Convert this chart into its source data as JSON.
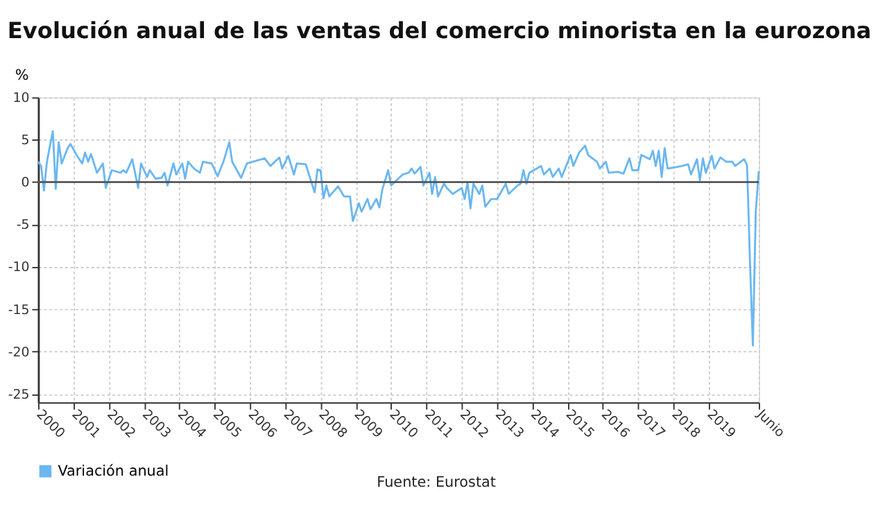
{
  "chart_data": {
    "type": "line",
    "title": "Evolución anual de las ventas del comercio minorista en la eurozona",
    "ylabel": "%",
    "x": [
      "2000-01",
      "2000-02",
      "2000-03",
      "2000-04",
      "2000-05",
      "2000-06",
      "2000-07",
      "2000-08",
      "2000-09",
      "2000-11",
      "2000-12",
      "2001-02",
      "2001-04",
      "2001-05",
      "2001-06",
      "2001-07",
      "2001-09",
      "2001-11",
      "2001-12",
      "2002-02",
      "2002-05",
      "2002-06",
      "2002-07",
      "2002-09",
      "2002-11",
      "2002-12",
      "2003-02",
      "2003-03",
      "2003-05",
      "2003-07",
      "2003-08",
      "2003-09",
      "2003-11",
      "2003-12",
      "2004-02",
      "2004-03",
      "2004-04",
      "2004-06",
      "2004-08",
      "2004-09",
      "2004-12",
      "2005-02",
      "2005-04",
      "2005-06",
      "2005-07",
      "2005-10",
      "2005-12",
      "2006-04",
      "2006-06",
      "2006-08",
      "2006-11",
      "2006-12",
      "2007-02",
      "2007-04",
      "2007-05",
      "2007-08",
      "2007-11",
      "2007-12",
      "2008-01",
      "2008-02",
      "2008-03",
      "2008-04",
      "2008-07",
      "2008-09",
      "2008-11",
      "2008-12",
      "2009-02",
      "2009-03",
      "2009-05",
      "2009-06",
      "2009-08",
      "2009-09",
      "2009-10",
      "2009-12",
      "2010-01",
      "2010-05",
      "2010-07",
      "2010-08",
      "2010-09",
      "2010-11",
      "2010-12",
      "2011-02",
      "2011-03",
      "2011-04",
      "2011-05",
      "2011-07",
      "2011-08",
      "2011-10",
      "2012-01",
      "2012-02",
      "2012-03",
      "2012-04",
      "2012-05",
      "2012-07",
      "2012-08",
      "2012-09",
      "2012-11",
      "2013-01",
      "2013-04",
      "2013-05",
      "2013-08",
      "2013-09",
      "2013-10",
      "2013-11",
      "2013-12",
      "2014-04",
      "2014-05",
      "2014-07",
      "2014-08",
      "2014-10",
      "2014-11",
      "2015-02",
      "2015-03",
      "2015-05",
      "2015-07",
      "2015-08",
      "2015-11",
      "2015-12",
      "2016-02",
      "2016-03",
      "2016-06",
      "2016-08",
      "2016-10",
      "2016-11",
      "2017-01",
      "2017-02",
      "2017-05",
      "2017-06",
      "2017-07",
      "2017-08",
      "2017-09",
      "2017-10",
      "2017-11",
      "2018-04",
      "2018-06",
      "2018-07",
      "2018-09",
      "2018-10",
      "2018-11",
      "2018-12",
      "2019-02",
      "2019-03",
      "2019-05",
      "2019-07",
      "2019-09",
      "2019-10",
      "2020-01",
      "2020-02",
      "2020-03",
      "2020-04",
      "2020-05",
      "2020-06"
    ],
    "series": [
      {
        "name": "Variación anual",
        "color": "#6bb7f0",
        "values": [
          2.4,
          1.9,
          -1.0,
          2.4,
          4.2,
          6.0,
          -0.8,
          4.7,
          2.2,
          4.0,
          4.5,
          3.2,
          2.2,
          3.5,
          2.4,
          3.3,
          1.1,
          2.2,
          -0.7,
          1.4,
          1.1,
          1.4,
          1.1,
          2.7,
          -0.7,
          2.2,
          0.6,
          1.4,
          0.4,
          0.5,
          1.1,
          -0.4,
          2.2,
          0.9,
          2.2,
          0.4,
          2.4,
          1.6,
          1.1,
          2.4,
          2.2,
          0.7,
          2.4,
          4.7,
          2.4,
          0.5,
          2.2,
          2.6,
          2.8,
          1.9,
          2.9,
          1.6,
          3.1,
          0.9,
          2.2,
          2.1,
          -1.2,
          1.5,
          1.4,
          -1.9,
          -0.4,
          -1.7,
          -0.5,
          -1.7,
          -1.7,
          -4.6,
          -2.5,
          -3.5,
          -2.0,
          -3.2,
          -2.0,
          -3.0,
          -0.9,
          1.4,
          -0.4,
          0.9,
          1.1,
          1.6,
          1.0,
          1.8,
          -0.4,
          1.1,
          -1.4,
          0.6,
          -1.7,
          -0.2,
          -0.7,
          -1.4,
          -0.7,
          -2.0,
          0.0,
          -3.1,
          -0.2,
          -1.4,
          -0.4,
          -2.9,
          -2.0,
          -2.0,
          -0.2,
          -1.4,
          -0.4,
          -0.2,
          1.4,
          -0.2,
          1.1,
          1.9,
          0.9,
          1.6,
          0.6,
          1.6,
          0.6,
          3.2,
          1.9,
          3.5,
          4.3,
          3.2,
          2.4,
          1.6,
          2.4,
          1.1,
          1.2,
          1.0,
          2.8,
          1.4,
          1.4,
          3.2,
          2.7,
          3.7,
          1.9,
          3.7,
          0.6,
          4.0,
          1.6,
          1.9,
          2.1,
          0.9,
          2.7,
          0.2,
          2.8,
          1.1,
          3.1,
          1.6,
          2.9,
          2.4,
          2.4,
          1.9,
          2.7,
          2.0,
          -9.0,
          -19.3,
          -3.5,
          1.3
        ]
      }
    ],
    "xlim": [
      "2000-01",
      "2020-06"
    ],
    "xticks": [
      {
        "value": "2000-01",
        "label": "2000"
      },
      {
        "value": "2001-01",
        "label": "2001"
      },
      {
        "value": "2002-01",
        "label": "2002"
      },
      {
        "value": "2003-01",
        "label": "2003"
      },
      {
        "value": "2004-01",
        "label": "2004"
      },
      {
        "value": "2005-01",
        "label": "2005"
      },
      {
        "value": "2006-01",
        "label": "2006"
      },
      {
        "value": "2007-01",
        "label": "2007"
      },
      {
        "value": "2008-01",
        "label": "2008"
      },
      {
        "value": "2009-01",
        "label": "2009"
      },
      {
        "value": "2010-01",
        "label": "2010"
      },
      {
        "value": "2011-01",
        "label": "2011"
      },
      {
        "value": "2012-01",
        "label": "2012"
      },
      {
        "value": "2013-01",
        "label": "2013"
      },
      {
        "value": "2014-01",
        "label": "2014"
      },
      {
        "value": "2015-01",
        "label": "2015"
      },
      {
        "value": "2016-01",
        "label": "2016"
      },
      {
        "value": "2017-01",
        "label": "2017"
      },
      {
        "value": "2018-01",
        "label": "2018"
      },
      {
        "value": "2019-01",
        "label": "2019"
      },
      {
        "value": "2020-06",
        "label": "Junio"
      }
    ],
    "ylim": [
      -26,
      10
    ],
    "yticks": [
      -25,
      -20,
      -15,
      -10,
      -5,
      0,
      5,
      10
    ],
    "ref_lines": [
      {
        "axis": "y",
        "value": 0,
        "color": "#555555"
      }
    ],
    "grid": true,
    "legend": "bottom",
    "marker": "none",
    "line_style": "solid",
    "annotations": [
      "Fuente: Eurostat"
    ]
  }
}
